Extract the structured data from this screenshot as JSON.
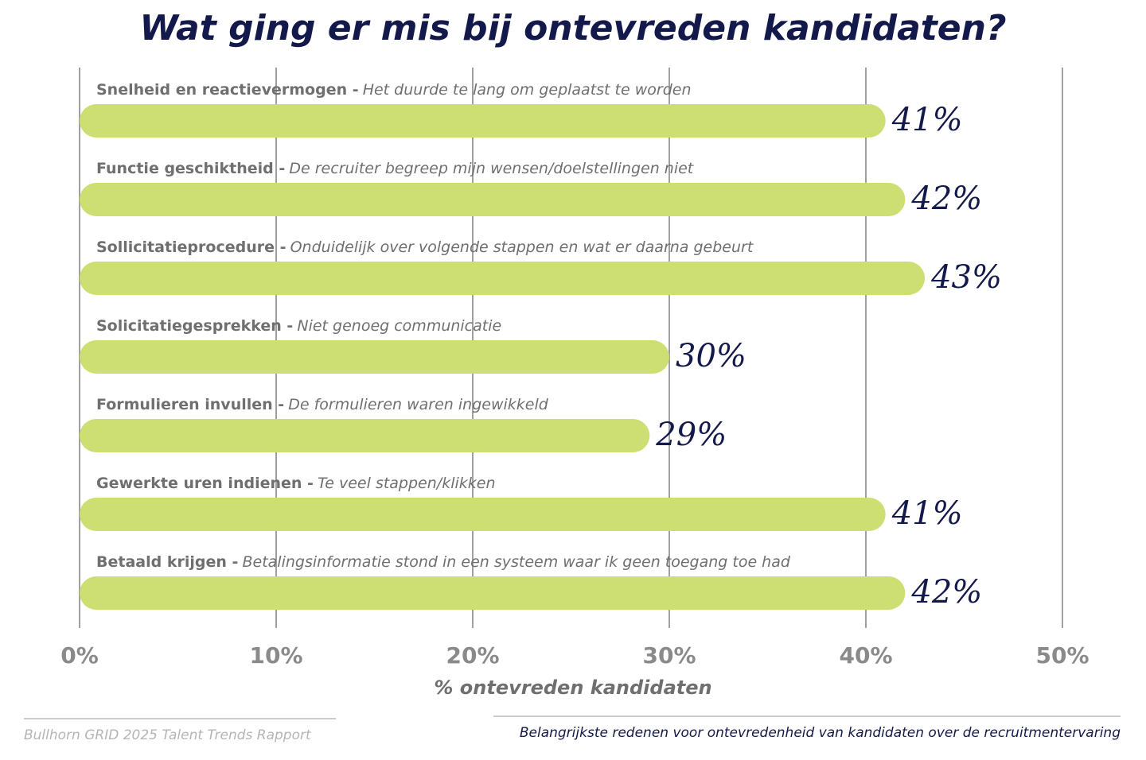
{
  "chart_data": {
    "type": "barh",
    "title": "Wat ging er mis bij ontevreden kandidaten?",
    "categories": [
      "Snelheid en reactievermogen -",
      "Functie geschiktheid -",
      "Sollicitatieprocedure -",
      "Solicitatiegesprekken -",
      "Formulieren invullen -",
      "Gewerkte uren indienen -",
      "Betaald krijgen -"
    ],
    "descriptions": [
      "Het duurde te lang om geplaatst te worden",
      "De recruiter begreep mijn wensen/doelstellingen niet",
      "Onduidelijk over volgende stappen en wat er daarna gebeurt",
      "Niet genoeg communicatie",
      "De formulieren waren ingewikkeld",
      "Te veel stappen/klikken",
      "Betalingsinformatie stond in een systeem waar ik geen toegang toe had"
    ],
    "values": [
      41,
      42,
      43,
      30,
      29,
      41,
      42
    ],
    "value_labels": [
      "41%",
      "42%",
      "43%",
      "30%",
      "29%",
      "41%",
      "42%"
    ],
    "color": "#cddf72",
    "xlim": [
      0,
      50
    ],
    "xticks": [
      {
        "value": 0,
        "label": "0%"
      },
      {
        "value": 10,
        "label": "10%"
      },
      {
        "value": 20,
        "label": "20%"
      },
      {
        "value": 30,
        "label": "30%"
      },
      {
        "value": 40,
        "label": "40%"
      },
      {
        "value": 50,
        "label": "50%"
      }
    ],
    "grid": true,
    "xlabel": "% ontevreden kandidaten",
    "source": "Bullhorn GRID 2025 Talent Trends Rapport",
    "note": "Belangrijkste redenen voor ontevredenheid van kandidaten over de recruitmentervaring"
  }
}
